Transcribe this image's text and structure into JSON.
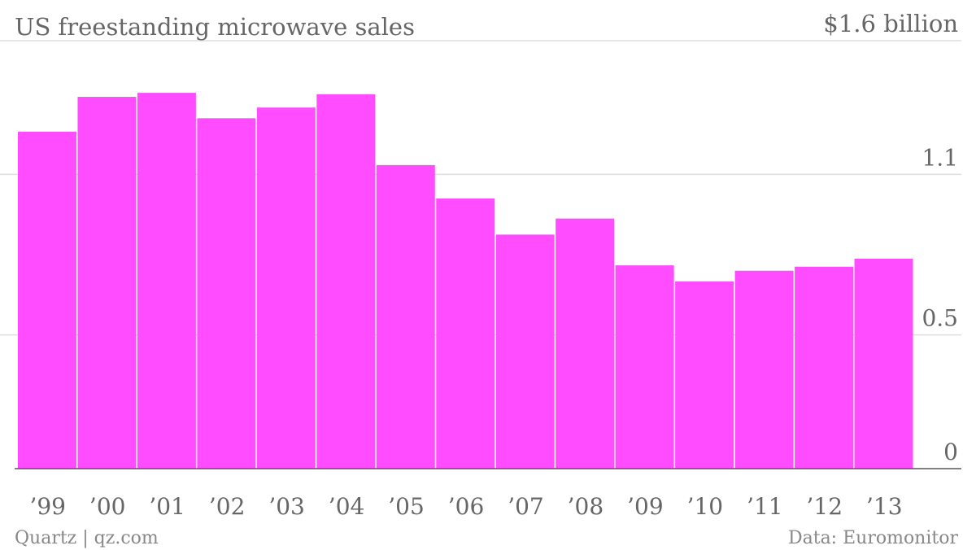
{
  "chart_data": {
    "type": "bar",
    "title": "US freestanding microwave sales",
    "unit_label": "$1.6 billion",
    "categories": [
      "’99",
      "’00",
      "’01",
      "’02",
      "’03",
      "’04",
      "’05",
      "’06",
      "’07",
      "’08",
      "’09",
      "’10",
      "’11",
      "’12",
      "’13"
    ],
    "values": [
      1.26,
      1.39,
      1.405,
      1.31,
      1.35,
      1.4,
      1.135,
      1.01,
      0.875,
      0.935,
      0.76,
      0.7,
      0.74,
      0.755,
      0.785
    ],
    "y_ticks": [
      {
        "value": 0,
        "label": "0"
      },
      {
        "value": 0.5,
        "label": "0.5"
      },
      {
        "value": 1.1,
        "label": "1.1"
      },
      {
        "value": 1.6,
        "label": "$1.6 billion"
      }
    ],
    "ylim": [
      0,
      1.6
    ],
    "grid": true,
    "bar_color": "#ff4cff"
  },
  "footer": {
    "source_left": "Quartz | qz.com",
    "source_right": "Data: Euromonitor"
  }
}
